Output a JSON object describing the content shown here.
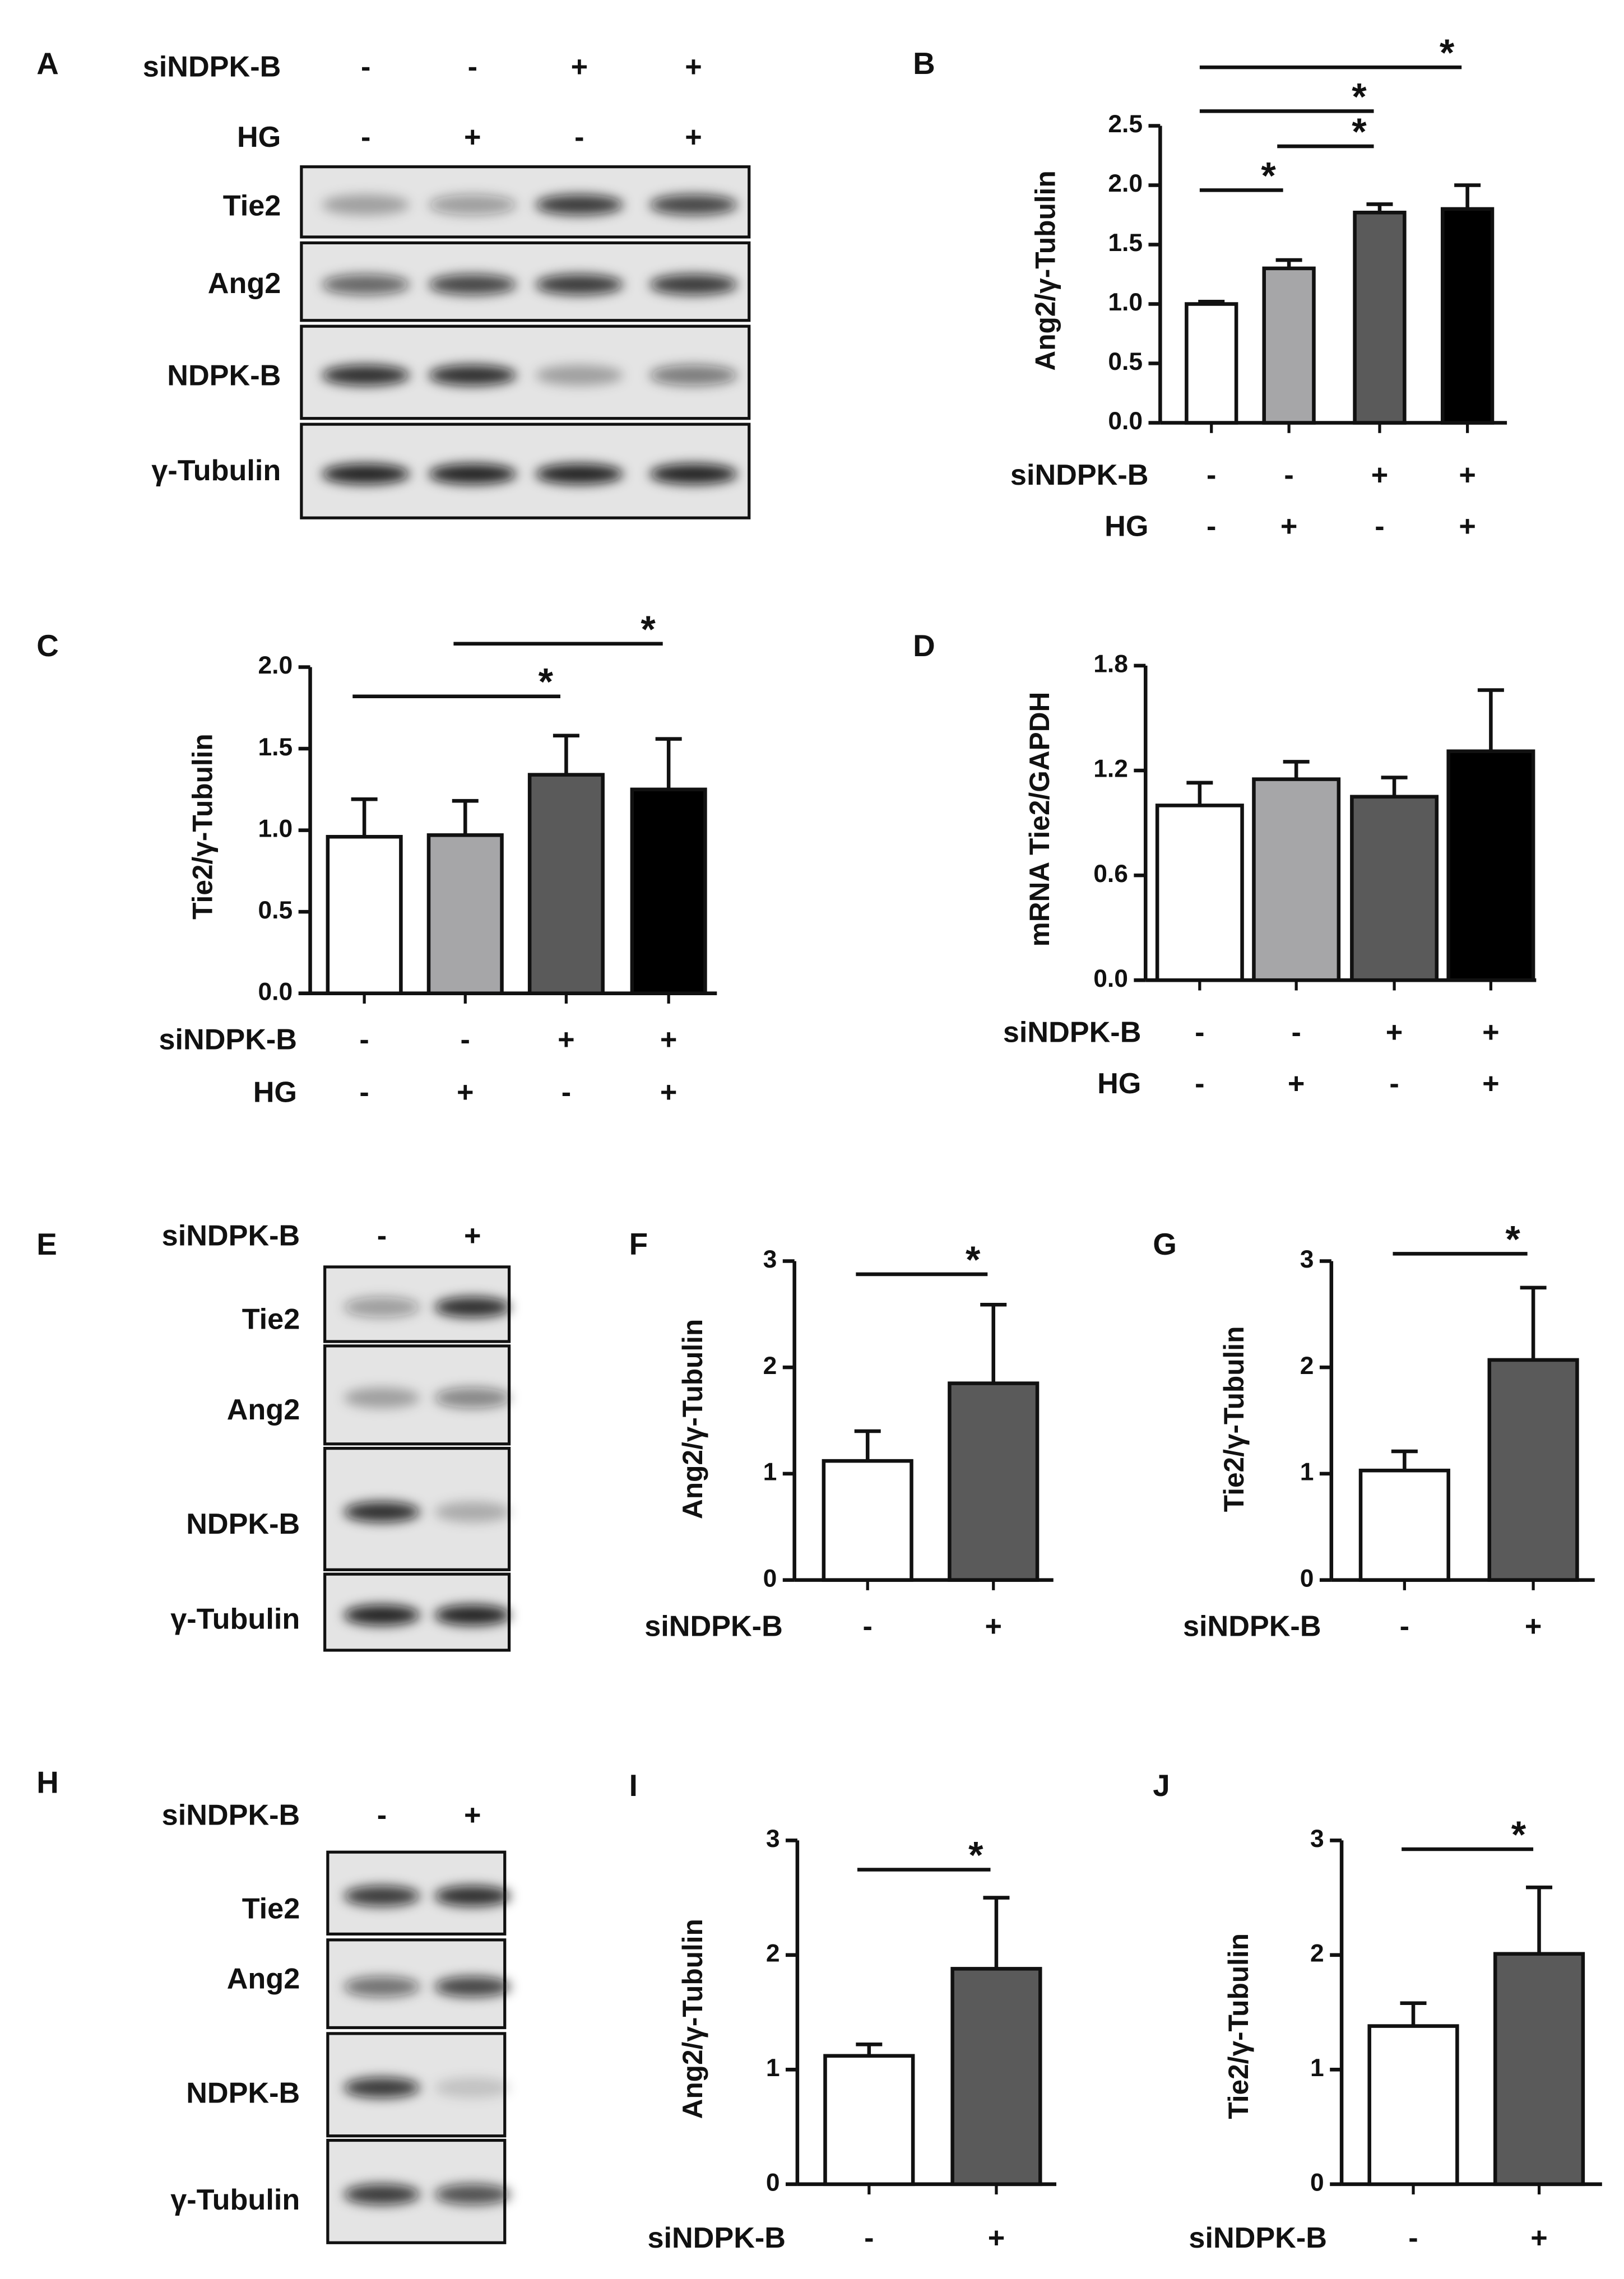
{
  "blots": [
    {
      "panel": "A",
      "conditions": [
        {
          "name": "siNDPK-B",
          "marks": [
            "-",
            "-",
            "+",
            "+"
          ]
        },
        {
          "name": "HG",
          "marks": [
            "-",
            "+",
            "-",
            "+"
          ]
        }
      ],
      "lanes": [
        "Tie2",
        "Ang2",
        "NDPK-B",
        "γ-Tubulin"
      ]
    },
    {
      "panel": "E",
      "conditions": [
        {
          "name": "siNDPK-B",
          "marks": [
            "-",
            "+"
          ]
        }
      ],
      "lanes": [
        "Tie2",
        "Ang2",
        "NDPK-B",
        "γ-Tubulin"
      ]
    },
    {
      "panel": "H",
      "conditions": [
        {
          "name": "siNDPK-B",
          "marks": [
            "-",
            "+"
          ]
        }
      ],
      "lanes": [
        "Tie2",
        "Ang2",
        "NDPK-B",
        "γ-Tubulin"
      ]
    }
  ],
  "chart_data": [
    {
      "type": "bar",
      "panel": "B",
      "ylabel": "Ang2/γ-Tubulin",
      "values": [
        1.0,
        1.3,
        1.77,
        1.8
      ],
      "errors": [
        0.02,
        0.07,
        0.07,
        0.2
      ],
      "colors": [
        "#ffffff",
        "#a6a6a8",
        "#5a5a5a",
        "#000000"
      ],
      "ylim": [
        0,
        2.5
      ],
      "yticks": [
        {
          "value": 0,
          "label": "0.0"
        },
        0.5,
        {
          "value": 1,
          "label": "1.0"
        },
        1.5,
        {
          "value": 2,
          "label": "2.0"
        },
        2.5
      ],
      "conditions": [
        {
          "name": "siNDPK-B",
          "marks": [
            "-",
            "-",
            "+",
            "+"
          ]
        },
        {
          "name": "HG",
          "marks": [
            "-",
            "+",
            "-",
            "+"
          ]
        }
      ],
      "significance": [
        {
          "between": [
            0,
            1
          ],
          "label": "*"
        },
        {
          "between": [
            1,
            2
          ],
          "label": "*"
        },
        {
          "between": [
            0,
            2
          ],
          "label": "*"
        },
        {
          "between": [
            0,
            3
          ],
          "label": "*"
        }
      ]
    },
    {
      "type": "bar",
      "panel": "C",
      "ylabel": "Tie2/γ-Tubulin",
      "values": [
        0.96,
        0.97,
        1.34,
        1.25
      ],
      "errors": [
        0.23,
        0.21,
        0.24,
        0.31
      ],
      "colors": [
        "#ffffff",
        "#a6a6a8",
        "#5a5a5a",
        "#000000"
      ],
      "ylim": [
        0,
        2
      ],
      "yticks": [
        {
          "value": 0,
          "label": "0.0"
        },
        0.5,
        {
          "value": 1,
          "label": "1.0"
        },
        1.5,
        {
          "value": 2,
          "label": "2.0"
        }
      ],
      "conditions": [
        {
          "name": "siNDPK-B",
          "marks": [
            "-",
            "-",
            "+",
            "+"
          ]
        },
        {
          "name": "HG",
          "marks": [
            "-",
            "+",
            "-",
            "+"
          ]
        }
      ],
      "significance": [
        {
          "between": [
            0,
            2
          ],
          "label": "*"
        },
        {
          "between": [
            1,
            3
          ],
          "label": "*"
        }
      ]
    },
    {
      "type": "bar",
      "panel": "D",
      "ylabel": "mRNA Tie2/GAPDH",
      "values": [
        1.0,
        1.15,
        1.05,
        1.31
      ],
      "errors": [
        0.13,
        0.1,
        0.11,
        0.35
      ],
      "colors": [
        "#ffffff",
        "#a6a6a8",
        "#5a5a5a",
        "#000000"
      ],
      "ylim": [
        0,
        1.8
      ],
      "yticks": [
        {
          "value": 0,
          "label": "0.0"
        },
        0.6,
        1.2,
        1.8
      ],
      "conditions": [
        {
          "name": "siNDPK-B",
          "marks": [
            "-",
            "-",
            "+",
            "+"
          ]
        },
        {
          "name": "HG",
          "marks": [
            "-",
            "+",
            "-",
            "+"
          ]
        }
      ],
      "significance": []
    },
    {
      "type": "bar",
      "panel": "F",
      "ylabel": "Ang2/γ-Tubulin",
      "values": [
        1.12,
        1.85
      ],
      "errors": [
        0.28,
        0.74
      ],
      "colors": [
        "#ffffff",
        "#5a5a5a"
      ],
      "ylim": [
        0,
        3
      ],
      "yticks": [
        0,
        1,
        2,
        3
      ],
      "conditions": [
        {
          "name": "siNDPK-B",
          "marks": [
            "-",
            "+"
          ]
        }
      ],
      "significance": [
        {
          "between": [
            0,
            1
          ],
          "label": "*"
        }
      ]
    },
    {
      "type": "bar",
      "panel": "G",
      "ylabel": "Tie2/γ-Tubulin",
      "values": [
        1.03,
        2.07
      ],
      "errors": [
        0.18,
        0.68
      ],
      "colors": [
        "#ffffff",
        "#5a5a5a"
      ],
      "ylim": [
        0,
        3
      ],
      "yticks": [
        0,
        1,
        2,
        3
      ],
      "conditions": [
        {
          "name": "siNDPK-B",
          "marks": [
            "-",
            "+"
          ]
        }
      ],
      "significance": [
        {
          "between": [
            0,
            1
          ],
          "label": "*"
        }
      ]
    },
    {
      "type": "bar",
      "panel": "I",
      "ylabel": "Ang2/γ-Tubulin",
      "values": [
        1.12,
        1.88
      ],
      "errors": [
        0.1,
        0.62
      ],
      "colors": [
        "#ffffff",
        "#5a5a5a"
      ],
      "ylim": [
        0,
        3
      ],
      "yticks": [
        0,
        1,
        2,
        3
      ],
      "conditions": [
        {
          "name": "siNDPK-B",
          "marks": [
            "-",
            "+"
          ]
        }
      ],
      "significance": [
        {
          "between": [
            0,
            1
          ],
          "label": "*"
        }
      ]
    },
    {
      "type": "bar",
      "panel": "J",
      "ylabel": "Tie2/γ-Tubulin",
      "values": [
        1.38,
        2.01
      ],
      "errors": [
        0.2,
        0.58
      ],
      "colors": [
        "#ffffff",
        "#5a5a5a"
      ],
      "ylim": [
        0,
        3
      ],
      "yticks": [
        0,
        1,
        2,
        3
      ],
      "conditions": [
        {
          "name": "siNDPK-B",
          "marks": [
            "-",
            "+"
          ]
        }
      ],
      "significance": [
        {
          "between": [
            0,
            1
          ],
          "label": "*"
        }
      ]
    }
  ]
}
